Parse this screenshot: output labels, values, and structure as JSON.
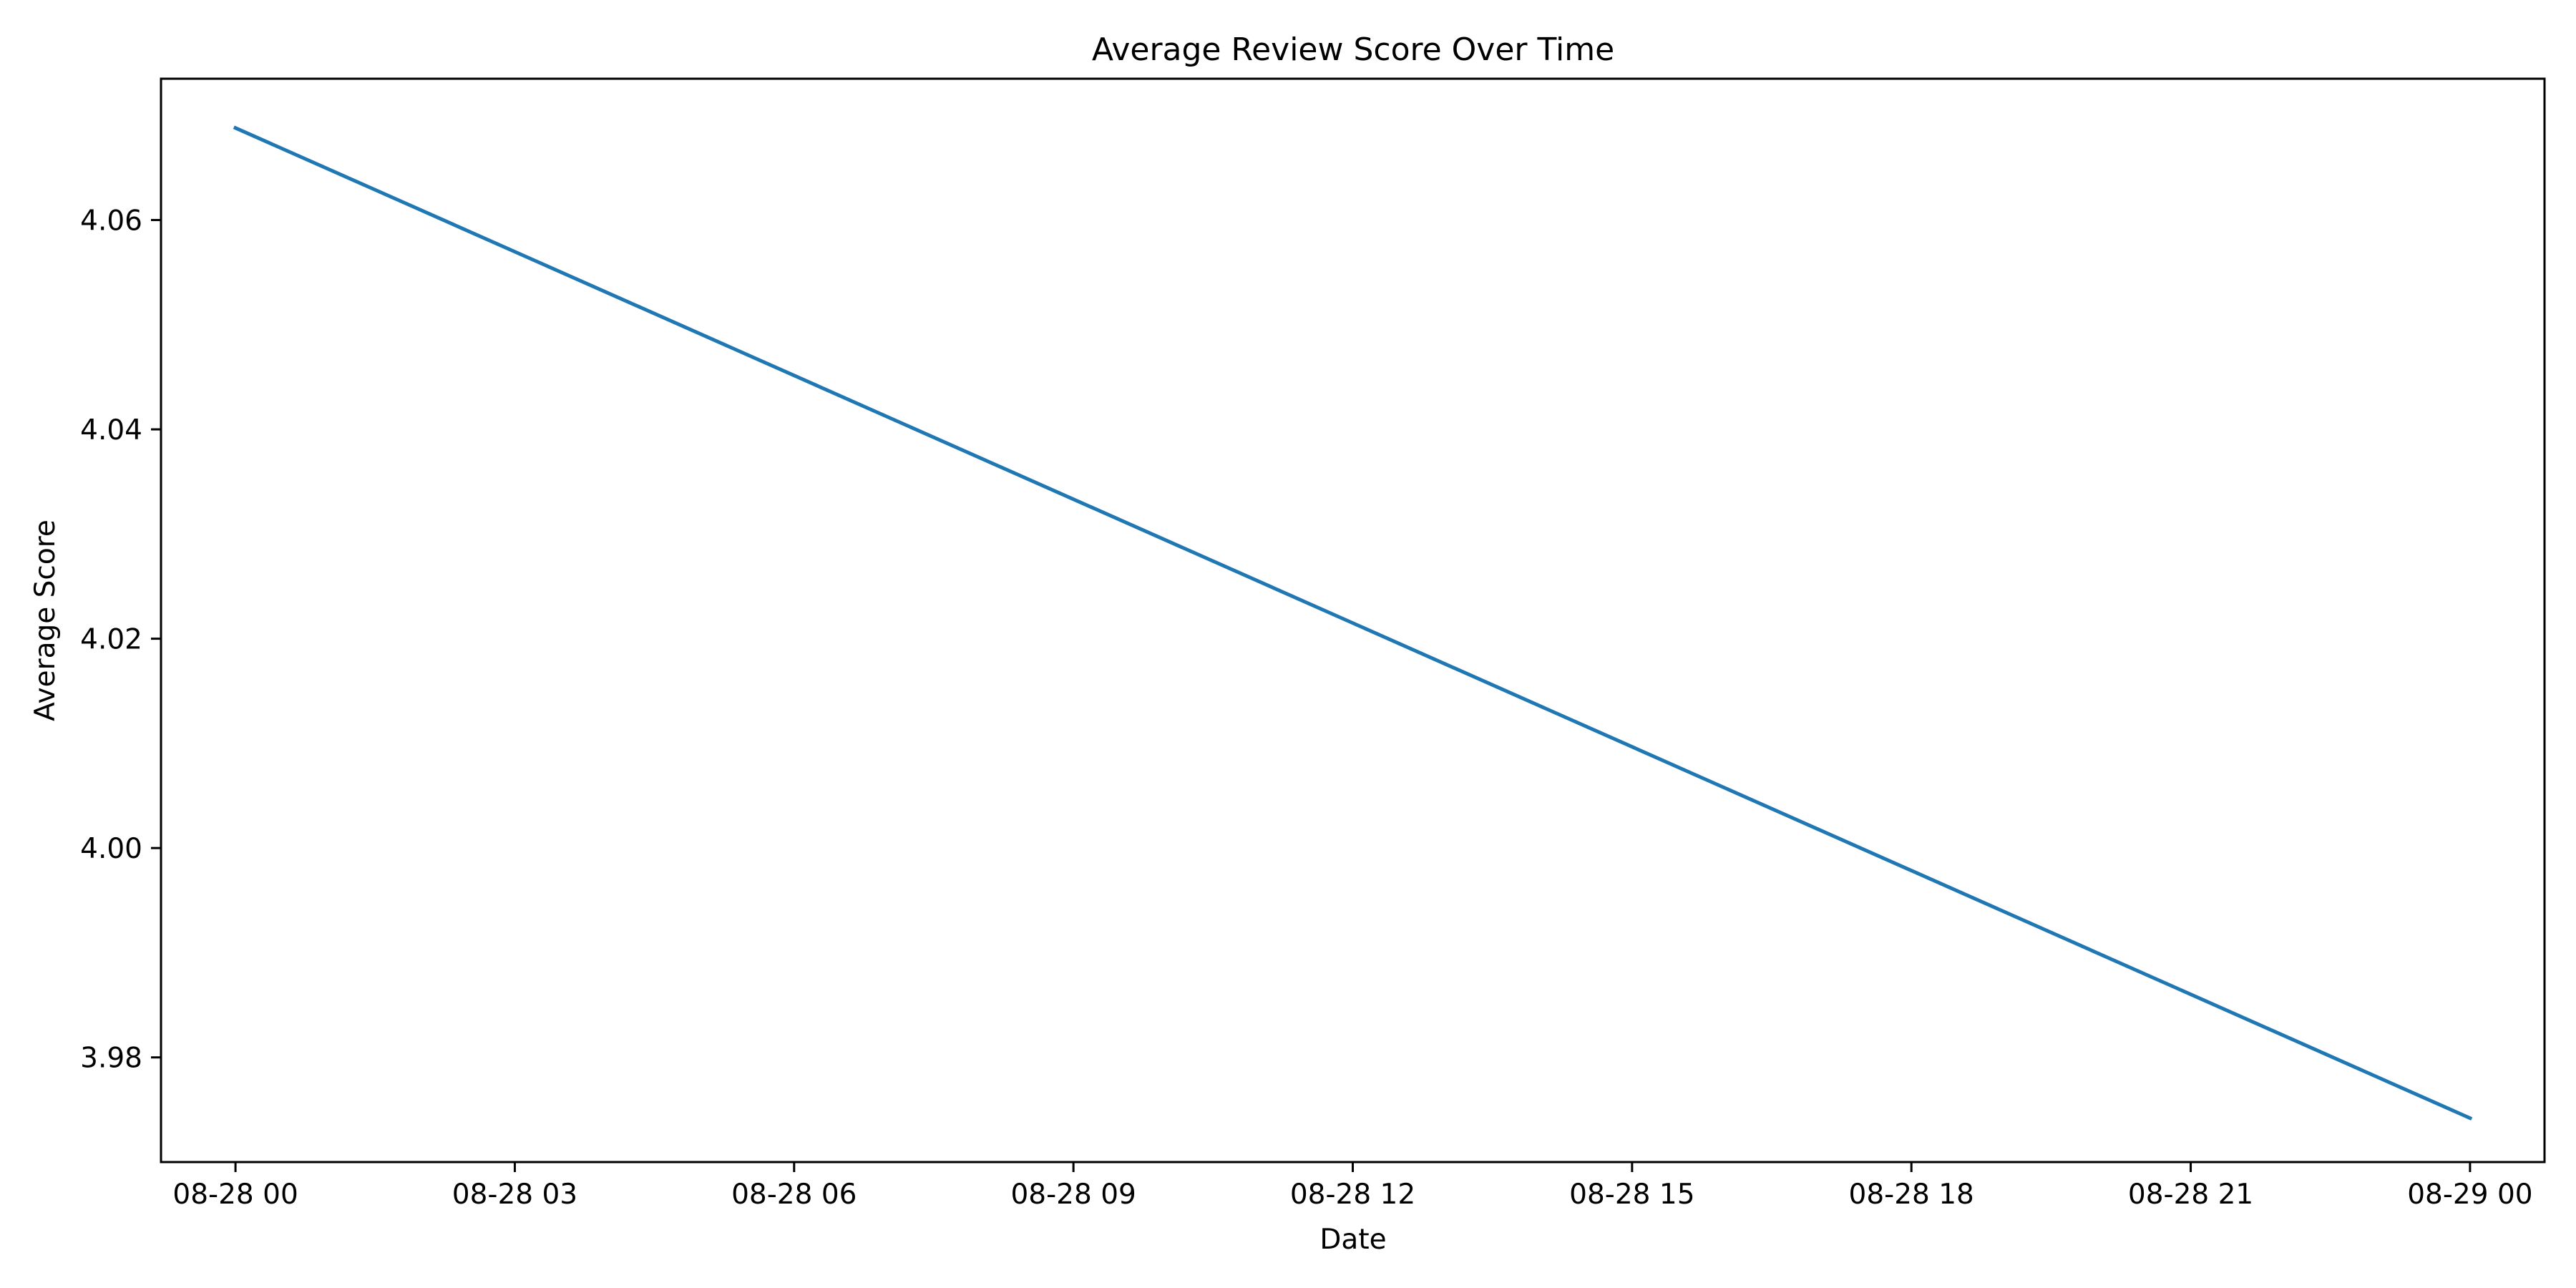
{
  "chart_data": {
    "type": "line",
    "title": "Average Review Score Over Time",
    "xlabel": "Date",
    "ylabel": "Average Score",
    "x_ticks": [
      "08-28 00",
      "08-28 03",
      "08-28 06",
      "08-28 09",
      "08-28 12",
      "08-28 15",
      "08-28 18",
      "08-28 21",
      "08-29 00"
    ],
    "y_ticks": [
      "3.98",
      "4.00",
      "4.02",
      "4.04",
      "4.06"
    ],
    "xlim": [
      "08-27 23:12",
      "08-29 00:48"
    ],
    "ylim": [
      3.97,
      4.0735
    ],
    "grid": false,
    "series": [
      {
        "color": "#1f77b4",
        "x": [
          "08-28 00",
          "08-29 00"
        ],
        "y": [
          4.0688,
          3.9742
        ]
      }
    ]
  }
}
